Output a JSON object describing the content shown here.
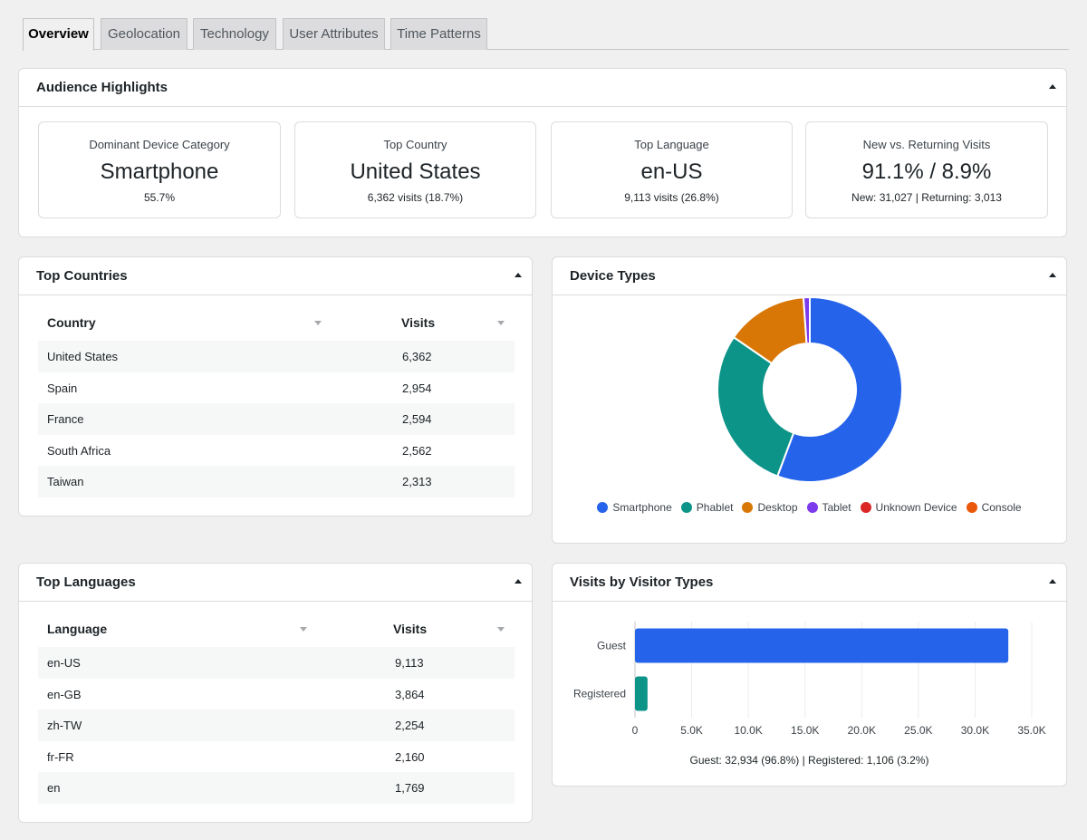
{
  "tabs": [
    {
      "label": "Overview"
    },
    {
      "label": "Geolocation"
    },
    {
      "label": "Technology"
    },
    {
      "label": "User Attributes"
    },
    {
      "label": "Time Patterns"
    }
  ],
  "highlights": {
    "title": "Audience Highlights",
    "cards": [
      {
        "label": "Dominant Device Category",
        "value": "Smartphone",
        "sub": "55.7%"
      },
      {
        "label": "Top Country",
        "value": "United States",
        "sub": "6,362 visits (18.7%)"
      },
      {
        "label": "Top Language",
        "value": "en-US",
        "sub": "9,113 visits (26.8%)"
      },
      {
        "label": "New vs. Returning Visits",
        "value": "91.1% / 8.9%",
        "sub": "New: 31,027 | Returning: 3,013"
      }
    ]
  },
  "top_countries": {
    "title": "Top Countries",
    "col1": "Country",
    "col2": "Visits",
    "rows": [
      {
        "name": "United States",
        "visits": "6,362"
      },
      {
        "name": "Spain",
        "visits": "2,954"
      },
      {
        "name": "France",
        "visits": "2,594"
      },
      {
        "name": "South Africa",
        "visits": "2,562"
      },
      {
        "name": "Taiwan",
        "visits": "2,313"
      }
    ]
  },
  "top_languages": {
    "title": "Top Languages",
    "col1": "Language",
    "col2": "Visits",
    "rows": [
      {
        "name": "en-US",
        "visits": "9,113"
      },
      {
        "name": "en-GB",
        "visits": "3,864"
      },
      {
        "name": "zh-TW",
        "visits": "2,254"
      },
      {
        "name": "fr-FR",
        "visits": "2,160"
      },
      {
        "name": "en",
        "visits": "1,769"
      }
    ]
  },
  "device_types": {
    "title": "Device Types"
  },
  "visitor_types": {
    "title": "Visits by Visitor Types",
    "summary": "Guest: 32,934 (96.8%) | Registered: 1,106 (3.2%)"
  },
  "chart_data": [
    {
      "type": "pie",
      "categories": [
        "Smartphone",
        "Phablet",
        "Desktop",
        "Tablet",
        "Unknown Device",
        "Console"
      ],
      "values": [
        55.7,
        28.9,
        14.3,
        1.1,
        0,
        0
      ],
      "colors": [
        "#2563eb",
        "#0d9488",
        "#d97706",
        "#7c3aed",
        "#dc2626",
        "#ea580c"
      ],
      "legend": "bottom"
    },
    {
      "type": "bar",
      "orientation": "horizontal",
      "categories": [
        "Guest",
        "Registered"
      ],
      "values": [
        32934,
        1106
      ],
      "colors": [
        "#2563eb",
        "#0d9488"
      ],
      "xlim": [
        0,
        35000
      ],
      "xticks": [
        "0",
        "5.0K",
        "10.0K",
        "15.0K",
        "20.0K",
        "25.0K",
        "30.0K",
        "35.0K"
      ],
      "grid": true
    }
  ]
}
